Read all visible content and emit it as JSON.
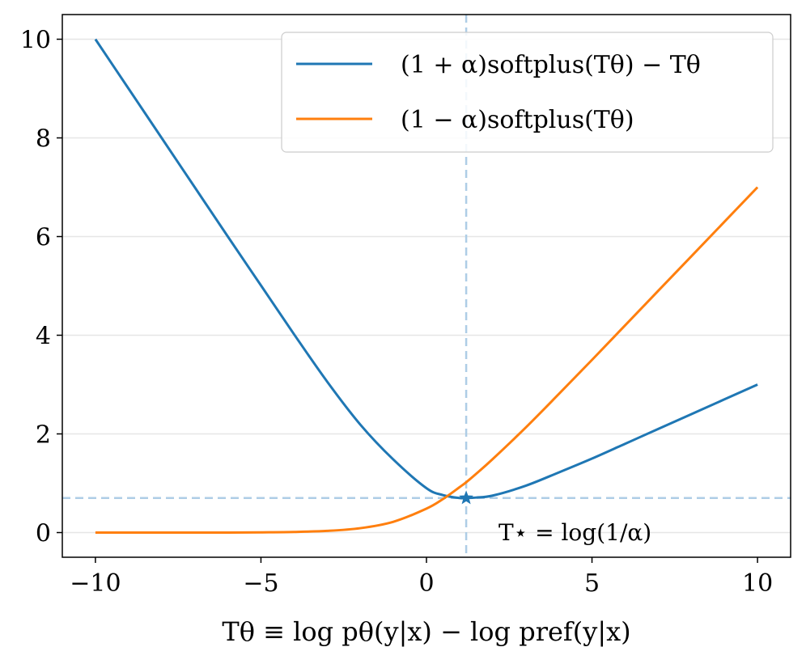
{
  "chart_data": {
    "type": "line",
    "xlabel": "Tθ ≡ log pθ(y|x) − log pref(y|x)",
    "ylabel": "",
    "xlim": [
      -11,
      11
    ],
    "ylim": [
      -0.5,
      10.5
    ],
    "xticks": [
      -10,
      -5,
      0,
      5,
      10
    ],
    "xtick_labels": [
      "−10",
      "−5",
      "0",
      "5",
      "10"
    ],
    "yticks": [
      0,
      2,
      4,
      6,
      8,
      10
    ],
    "ytick_labels": [
      "0",
      "2",
      "4",
      "6",
      "8",
      "10"
    ],
    "grid": "horizontal",
    "legend_position": "top-right",
    "alpha": 0.3,
    "series": [
      {
        "name": "(1 + α)softplus(Tθ) − Tθ",
        "color": "#1f77b4",
        "x": [
          -10,
          -9,
          -8,
          -7,
          -6,
          -5,
          -4,
          -3,
          -2,
          -1,
          0,
          0.5,
          1,
          1.2,
          1.5,
          2,
          3,
          4,
          5,
          6,
          7,
          8,
          9,
          10
        ],
        "y": [
          10.0,
          9.0,
          8.0,
          7.0,
          6.0,
          5.01,
          4.02,
          3.06,
          2.19,
          1.48,
          0.9,
          0.76,
          0.7,
          0.7,
          0.71,
          0.75,
          0.95,
          1.22,
          1.5,
          1.8,
          2.1,
          2.4,
          2.7,
          3.0
        ]
      },
      {
        "name": "(1 − α)softplus(Tθ)",
        "color": "#ff7f0e",
        "x": [
          -10,
          -9,
          -8,
          -7,
          -6,
          -5,
          -4,
          -3,
          -2,
          -1,
          0,
          0.5,
          1,
          1.2,
          1.5,
          2,
          3,
          4,
          5,
          6,
          7,
          8,
          9,
          10
        ],
        "y": [
          0.0,
          0.0,
          0.0,
          0.0,
          0.0,
          0.005,
          0.013,
          0.034,
          0.089,
          0.219,
          0.485,
          0.68,
          0.92,
          1.02,
          1.19,
          1.49,
          2.13,
          2.81,
          3.5,
          4.2,
          4.9,
          5.6,
          6.3,
          7.0
        ]
      }
    ],
    "reference_lines": {
      "vertical_x": 1.2,
      "horizontal_y": 0.7,
      "color": "#aecde6"
    },
    "marker": {
      "x": 1.2,
      "y": 0.7,
      "symbol": "star",
      "color": "#1f77b4"
    },
    "annotation": {
      "text": "T⋆ = log(1/α)",
      "x": 2.2,
      "y": 0.0
    }
  }
}
